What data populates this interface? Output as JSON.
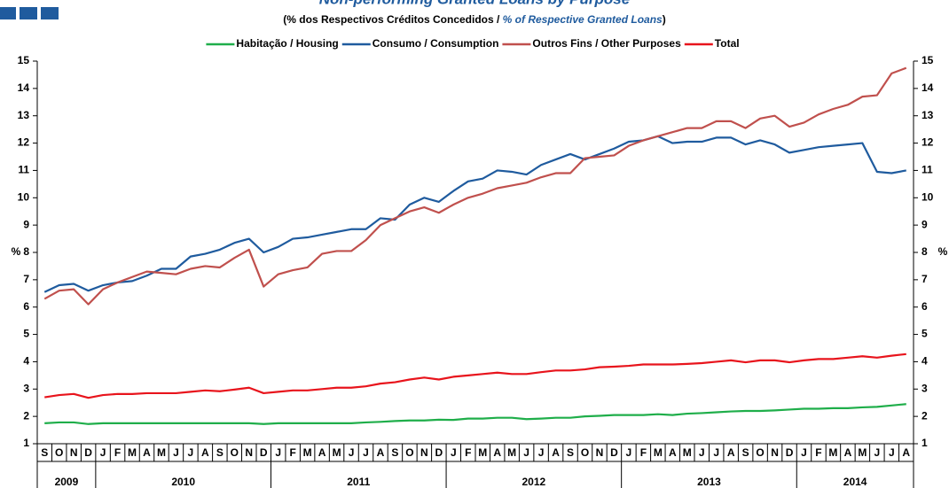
{
  "chart_data": {
    "type": "line",
    "title": "Non-performing Granted Loans by Purpose",
    "subtitle": [
      "(% dos Respectivos  Créditos Concedidos  / ",
      "% of Respective Granted Loans",
      ")"
    ],
    "ylabel": "%",
    "y2label": "%",
    "categories": [
      "S",
      "O",
      "N",
      "D",
      "J",
      "F",
      "M",
      "A",
      "M",
      "J",
      "J",
      "A",
      "S",
      "O",
      "N",
      "D",
      "J",
      "F",
      "M",
      "A",
      "M",
      "J",
      "J",
      "A",
      "S",
      "O",
      "N",
      "D",
      "J",
      "F",
      "M",
      "A",
      "M",
      "J",
      "J",
      "A",
      "S",
      "O",
      "N",
      "D",
      "J",
      "F",
      "M",
      "A",
      "M",
      "J",
      "J",
      "A",
      "S",
      "O",
      "N",
      "D",
      "J",
      "F",
      "M",
      "A",
      "M",
      "J",
      "J",
      "A"
    ],
    "years": [
      "2009",
      "2010",
      "2011",
      "2012",
      "2013",
      "2014"
    ],
    "ylim": [
      1,
      15
    ],
    "yticks": [
      1,
      2,
      3,
      4,
      5,
      6,
      7,
      8,
      9,
      10,
      11,
      12,
      13,
      14,
      15
    ],
    "y2lim": [
      1,
      15
    ],
    "y2ticks": [
      1,
      2,
      3,
      4,
      5,
      6,
      7,
      8,
      9,
      10,
      11,
      12,
      13,
      14,
      15
    ],
    "legend": "top",
    "series": [
      {
        "name": "Habitação / Housing",
        "color": "#1fae4a",
        "values": [
          1.75,
          1.78,
          1.78,
          1.72,
          1.75,
          1.75,
          1.75,
          1.75,
          1.75,
          1.75,
          1.75,
          1.75,
          1.75,
          1.75,
          1.75,
          1.72,
          1.75,
          1.75,
          1.75,
          1.75,
          1.75,
          1.75,
          1.78,
          1.8,
          1.83,
          1.85,
          1.85,
          1.88,
          1.87,
          1.92,
          1.92,
          1.95,
          1.95,
          1.9,
          1.92,
          1.95,
          1.95,
          2.0,
          2.02,
          2.05,
          2.05,
          2.05,
          2.08,
          2.05,
          2.1,
          2.12,
          2.15,
          2.18,
          2.2,
          2.2,
          2.22,
          2.25,
          2.28,
          2.28,
          2.3,
          2.3,
          2.33,
          2.35,
          2.4,
          2.45
        ]
      },
      {
        "name": "Consumo / Consumption",
        "color": "#1f5b9e",
        "values": [
          6.55,
          6.8,
          6.85,
          6.6,
          6.8,
          6.9,
          6.95,
          7.15,
          7.4,
          7.4,
          7.85,
          7.95,
          8.1,
          8.35,
          8.5,
          8.0,
          8.2,
          8.5,
          8.55,
          8.65,
          8.75,
          8.85,
          8.85,
          9.25,
          9.2,
          9.75,
          10.0,
          9.85,
          10.25,
          10.6,
          10.7,
          11.0,
          10.95,
          10.85,
          11.2,
          11.4,
          11.6,
          11.4,
          11.6,
          11.8,
          12.05,
          12.1,
          12.25,
          12.0,
          12.05,
          12.05,
          12.2,
          12.2,
          11.95,
          12.1,
          11.95,
          11.65,
          11.75,
          11.85,
          11.9,
          11.95,
          12.0,
          10.95,
          10.9,
          11.0
        ]
      },
      {
        "name": "Outros Fins / Other Purposes",
        "color": "#c0504d",
        "values": [
          6.3,
          6.6,
          6.65,
          6.1,
          6.65,
          6.9,
          7.1,
          7.3,
          7.25,
          7.2,
          7.4,
          7.5,
          7.45,
          7.8,
          8.1,
          6.75,
          7.2,
          7.35,
          7.45,
          7.95,
          8.05,
          8.05,
          8.45,
          9.0,
          9.25,
          9.5,
          9.65,
          9.45,
          9.75,
          10.0,
          10.15,
          10.35,
          10.45,
          10.55,
          10.75,
          10.9,
          10.9,
          11.45,
          11.5,
          11.55,
          11.9,
          12.1,
          12.25,
          12.4,
          12.55,
          12.55,
          12.8,
          12.8,
          12.55,
          12.9,
          13.0,
          12.6,
          12.75,
          13.05,
          13.25,
          13.4,
          13.7,
          13.75,
          14.55,
          14.75
        ]
      },
      {
        "name": "Total",
        "color": "#e8141c",
        "values": [
          2.7,
          2.78,
          2.82,
          2.68,
          2.78,
          2.82,
          2.82,
          2.85,
          2.85,
          2.85,
          2.9,
          2.95,
          2.92,
          2.98,
          3.05,
          2.85,
          2.9,
          2.95,
          2.95,
          3.0,
          3.05,
          3.05,
          3.1,
          3.2,
          3.25,
          3.35,
          3.42,
          3.35,
          3.45,
          3.5,
          3.55,
          3.6,
          3.55,
          3.55,
          3.62,
          3.68,
          3.68,
          3.72,
          3.8,
          3.82,
          3.85,
          3.9,
          3.9,
          3.9,
          3.92,
          3.95,
          4.0,
          4.05,
          3.98,
          4.05,
          4.05,
          3.98,
          4.05,
          4.1,
          4.1,
          4.15,
          4.2,
          4.15,
          4.22,
          4.28
        ]
      }
    ]
  }
}
